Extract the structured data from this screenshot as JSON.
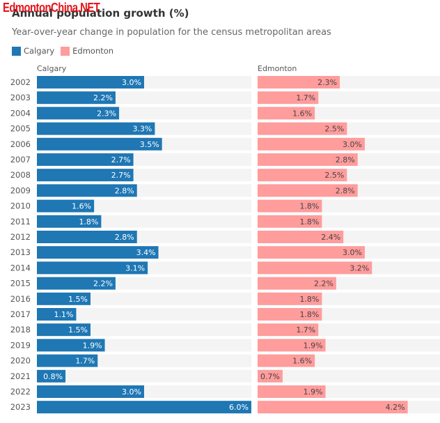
{
  "watermark": "EdmontonChina.NET",
  "chart_data": {
    "type": "bar",
    "orientation": "horizontal",
    "layout": "small-multiples",
    "title": "Annual population growth (%)",
    "subtitle": "Year-over-year change in population for the census metropolitan areas",
    "xlabel": "",
    "ylabel": "",
    "value_format": "percent-1dp",
    "grid": false,
    "legend_position": "top-left",
    "xlim": [
      0,
      6.0
    ],
    "categories": [
      "2002",
      "2003",
      "2004",
      "2005",
      "2006",
      "2007",
      "2008",
      "2009",
      "2010",
      "2011",
      "2012",
      "2013",
      "2014",
      "2015",
      "2016",
      "2017",
      "2018",
      "2019",
      "2020",
      "2021",
      "2022",
      "2023"
    ],
    "series": [
      {
        "name": "Calgary",
        "color": "#1f77b4",
        "label_color": "#ffffff",
        "values": [
          3.0,
          2.2,
          2.3,
          3.3,
          3.5,
          2.7,
          2.7,
          2.8,
          1.6,
          1.8,
          2.8,
          3.4,
          3.1,
          2.2,
          1.5,
          1.1,
          1.5,
          1.9,
          1.7,
          0.8,
          3.0,
          6.0
        ]
      },
      {
        "name": "Edmonton",
        "color": "#ff9c9c",
        "label_color": "#444444",
        "values": [
          2.3,
          1.7,
          1.6,
          2.5,
          3.0,
          2.8,
          2.5,
          2.8,
          1.8,
          1.8,
          2.4,
          3.0,
          3.2,
          2.2,
          1.8,
          1.8,
          1.7,
          1.9,
          1.6,
          0.7,
          1.9,
          4.2
        ]
      }
    ],
    "track_color": "#f4f4f4"
  }
}
